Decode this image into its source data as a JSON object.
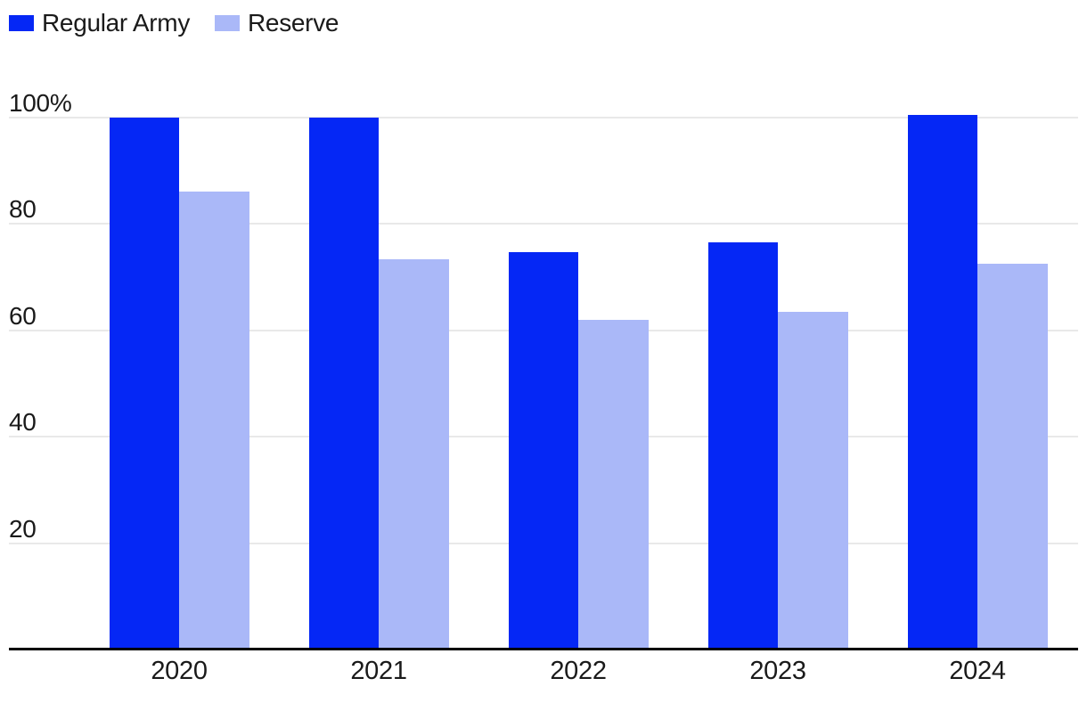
{
  "legend": {
    "items": [
      {
        "label": "Regular Army",
        "color": "#0527f5"
      },
      {
        "label": "Reserve",
        "color": "#aab8f8"
      }
    ]
  },
  "chart_data": {
    "type": "bar",
    "title": "",
    "categories": [
      "2020",
      "2021",
      "2022",
      "2023",
      "2024"
    ],
    "series": [
      {
        "name": "Regular Army",
        "color": "#0527f5",
        "values": [
          100,
          100,
          74.7,
          76.5,
          100.5
        ]
      },
      {
        "name": "Reserve",
        "color": "#aab8f8",
        "values": [
          86,
          73.3,
          62,
          63.5,
          72.5
        ]
      }
    ],
    "xlabel": "",
    "ylabel": "",
    "ylim": [
      0,
      100
    ],
    "yticks": [
      {
        "value": 100,
        "label": "100%"
      },
      {
        "value": 80,
        "label": "80"
      },
      {
        "value": 60,
        "label": "60"
      },
      {
        "value": 40,
        "label": "40"
      },
      {
        "value": 20,
        "label": "20"
      }
    ],
    "grid": true,
    "legend_position": "top-left"
  },
  "colors": {
    "background": "#ffffff",
    "gridline": "#e9e9e9",
    "axis_line": "#000000",
    "text": "#1a1a1a"
  }
}
